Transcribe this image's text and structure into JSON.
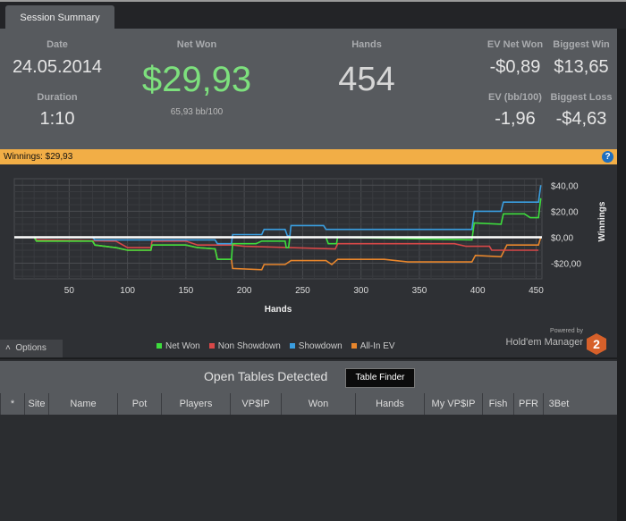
{
  "tab": "Session Summary",
  "summary": {
    "date_label": "Date",
    "date": "24.05.2014",
    "duration_label": "Duration",
    "duration": "1:10",
    "net_won_label": "Net Won",
    "net_won": "$29,93",
    "bb100": "65,93 bb/100",
    "hands_label": "Hands",
    "hands": "454",
    "ev_net_won_label": "EV Net Won",
    "ev_net_won": "-$0,89",
    "biggest_win_label": "Biggest Win",
    "biggest_win": "$13,65",
    "ev_bb_label": "EV (bb/100)",
    "ev_bb": "-1,96",
    "biggest_loss_label": "Biggest Loss",
    "biggest_loss": "-$4,63"
  },
  "winbar": "Winnings: $29,93",
  "help": "?",
  "colors": {
    "net_won": "#3ddc3d",
    "non_showdown": "#d84848",
    "showdown": "#3a9ee0",
    "allin": "#e8862c",
    "accent": "#f2ae46"
  },
  "chart_data": {
    "type": "line",
    "xlabel": "Hands",
    "ylabel": "Winnings",
    "xlim": [
      3,
      455
    ],
    "ylim": [
      -32,
      45
    ],
    "xticks": [
      50,
      100,
      150,
      200,
      250,
      300,
      350,
      400,
      450
    ],
    "yticks": [
      {
        "v": 40,
        "t": "$40,00"
      },
      {
        "v": 20,
        "t": "$20,00"
      },
      {
        "v": 0,
        "t": "$0,00"
      },
      {
        "v": -20,
        "t": "-$20,00"
      }
    ],
    "series": [
      {
        "name": "Net Won",
        "key": "net_won",
        "points": [
          [
            3,
            0
          ],
          [
            20,
            0
          ],
          [
            22,
            -3
          ],
          [
            70,
            -3
          ],
          [
            72,
            -6
          ],
          [
            90,
            -8
          ],
          [
            100,
            -10
          ],
          [
            120,
            -10
          ],
          [
            121,
            -6
          ],
          [
            150,
            -6
          ],
          [
            160,
            -8
          ],
          [
            175,
            -9
          ],
          [
            177,
            -17
          ],
          [
            189,
            -17
          ],
          [
            190,
            -5
          ],
          [
            210,
            -5
          ],
          [
            215,
            -3
          ],
          [
            235,
            -3
          ],
          [
            236,
            -8
          ],
          [
            238,
            -8
          ],
          [
            239,
            0
          ],
          [
            270,
            0
          ],
          [
            272,
            -5
          ],
          [
            279,
            -5
          ],
          [
            280,
            0
          ],
          [
            395,
            -2
          ],
          [
            397,
            11
          ],
          [
            420,
            10
          ],
          [
            422,
            18
          ],
          [
            440,
            18
          ],
          [
            445,
            15
          ],
          [
            452,
            15
          ],
          [
            454,
            30
          ]
        ]
      },
      {
        "name": "Non Showdown",
        "key": "non_showdown",
        "points": [
          [
            3,
            0
          ],
          [
            20,
            0
          ],
          [
            22,
            -2
          ],
          [
            90,
            -3
          ],
          [
            100,
            -8
          ],
          [
            120,
            -8
          ],
          [
            121,
            -3
          ],
          [
            150,
            -3
          ],
          [
            160,
            -6
          ],
          [
            190,
            -6
          ],
          [
            200,
            -7
          ],
          [
            278,
            -9
          ],
          [
            280,
            -5
          ],
          [
            380,
            -5
          ],
          [
            390,
            -7
          ],
          [
            410,
            -7
          ],
          [
            412,
            -10
          ],
          [
            452,
            -10
          ]
        ]
      },
      {
        "name": "Showdown",
        "key": "showdown",
        "points": [
          [
            3,
            0
          ],
          [
            70,
            0
          ],
          [
            72,
            -2
          ],
          [
            175,
            -2
          ],
          [
            177,
            -5
          ],
          [
            189,
            -5
          ],
          [
            190,
            2
          ],
          [
            215,
            2
          ],
          [
            217,
            6
          ],
          [
            235,
            6
          ],
          [
            237,
            1
          ],
          [
            239,
            1
          ],
          [
            240,
            9
          ],
          [
            268,
            9
          ],
          [
            270,
            6
          ],
          [
            395,
            6
          ],
          [
            397,
            20
          ],
          [
            420,
            20
          ],
          [
            422,
            27
          ],
          [
            452,
            27
          ],
          [
            454,
            40
          ]
        ]
      },
      {
        "name": "All-In EV",
        "key": "allin",
        "points": [
          [
            3,
            0
          ],
          [
            20,
            0
          ],
          [
            22,
            -3
          ],
          [
            70,
            -3
          ],
          [
            72,
            -6
          ],
          [
            90,
            -8
          ],
          [
            100,
            -10
          ],
          [
            120,
            -10
          ],
          [
            121,
            -6
          ],
          [
            150,
            -6
          ],
          [
            160,
            -8
          ],
          [
            175,
            -9
          ],
          [
            177,
            -17
          ],
          [
            189,
            -17
          ],
          [
            190,
            -24
          ],
          [
            215,
            -25
          ],
          [
            217,
            -21
          ],
          [
            235,
            -21
          ],
          [
            240,
            -18
          ],
          [
            270,
            -18
          ],
          [
            275,
            -21
          ],
          [
            280,
            -17
          ],
          [
            320,
            -17
          ],
          [
            340,
            -19
          ],
          [
            395,
            -19
          ],
          [
            398,
            -14
          ],
          [
            420,
            -15
          ],
          [
            425,
            -6
          ],
          [
            452,
            -6
          ],
          [
            454,
            0
          ]
        ]
      }
    ]
  },
  "options_label": "Options",
  "powered_by": "Powered by",
  "brand": "Hold'em Manager",
  "brand_badge": "2",
  "tables": {
    "title": "Open Tables Detected",
    "finder_button": "Table Finder",
    "columns": [
      "*",
      "Site",
      "Name",
      "Pot",
      "Players",
      "VP$IP",
      "Won",
      "Hands",
      "My VP$IP",
      "Fish",
      "PFR",
      "3Bet"
    ]
  }
}
